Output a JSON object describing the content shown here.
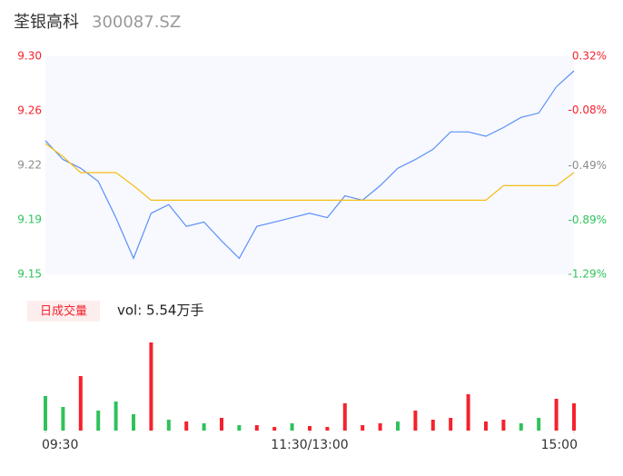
{
  "chart_data": [
    {
      "type": "line",
      "title": "荃银高科",
      "subtitle": "300087.SZ",
      "x": [
        0,
        8,
        16,
        24,
        32,
        40,
        48,
        56,
        64,
        72,
        80,
        88,
        96,
        104,
        112,
        120,
        128,
        136,
        144,
        152,
        160,
        168,
        176,
        184,
        192,
        200,
        208,
        216,
        224,
        232,
        240
      ],
      "xlim": [
        0,
        240
      ],
      "ylim": [
        9.15,
        9.3
      ],
      "yticks": [
        {
          "value": 9.3,
          "label": "9.30"
        },
        {
          "value": 9.2625,
          "label": "9.26"
        },
        {
          "value": 9.225,
          "label": "9.22"
        },
        {
          "value": 9.1875,
          "label": "9.19"
        },
        9.15
      ],
      "ytick_colors": [
        "#f5222d",
        "#f5222d",
        "#8c8c8c",
        "#2fc25b",
        "#2fc25b"
      ],
      "y2lim": [
        -1.29,
        0.32
      ],
      "y2ticks": [
        {
          "value": 0.32,
          "label": "0.32%"
        },
        {
          "value": -0.08,
          "label": "-0.08%"
        },
        {
          "value": -0.49,
          "label": "-0.49%"
        },
        {
          "value": -0.89,
          "label": "-0.89%"
        },
        {
          "value": -1.29,
          "label": "-1.29%"
        }
      ],
      "y2tick_colors": [
        "#f5222d",
        "#f5222d",
        "#8c8c8c",
        "#2fc25b",
        "#2fc25b"
      ],
      "series": [
        {
          "color": "#5b8ff9",
          "values": [
            9.242,
            9.229,
            9.223,
            9.214,
            9.189,
            9.161,
            9.192,
            9.198,
            9.183,
            9.186,
            9.173,
            9.161,
            9.183,
            9.186,
            9.189,
            9.192,
            9.189,
            9.204,
            9.201,
            9.211,
            9.223,
            9.229,
            9.236,
            9.248,
            9.248,
            9.245,
            9.251,
            9.258,
            9.261,
            9.279,
            9.29
          ]
        },
        {
          "color": "#f6bd16",
          "values": [
            9.24,
            9.231,
            9.22,
            9.22,
            9.22,
            9.211,
            9.201,
            9.201,
            9.201,
            9.201,
            9.201,
            9.201,
            9.201,
            9.201,
            9.201,
            9.201,
            9.201,
            9.201,
            9.201,
            9.201,
            9.201,
            9.201,
            9.201,
            9.201,
            9.201,
            9.201,
            9.211,
            9.211,
            9.211,
            9.211,
            9.22
          ]
        }
      ]
    },
    {
      "type": "bar",
      "label": "日成交量",
      "annotation": "vol: 5.54万手",
      "x": [
        0,
        8,
        16,
        24,
        32,
        40,
        48,
        56,
        64,
        72,
        80,
        88,
        96,
        104,
        112,
        120,
        128,
        136,
        144,
        152,
        160,
        168,
        176,
        184,
        192,
        200,
        208,
        216,
        224,
        232,
        240
      ],
      "xlim": [
        0,
        240
      ],
      "xticks": [
        {
          "value": 0,
          "label": "09:30"
        },
        {
          "value": 120,
          "label": "11:30/13:00"
        },
        {
          "value": 240,
          "label": "15:00"
        }
      ],
      "ylim": [
        0,
        100
      ],
      "values": [
        38,
        26,
        60,
        22,
        32,
        18,
        97,
        12,
        10,
        8,
        14,
        6,
        6,
        4,
        8,
        5,
        4,
        30,
        6,
        8,
        10,
        22,
        12,
        14,
        40,
        10,
        12,
        8,
        14,
        35,
        30
      ],
      "colors": [
        "#2fc25b",
        "#2fc25b",
        "#f5222d",
        "#2fc25b",
        "#2fc25b",
        "#2fc25b",
        "#f5222d",
        "#2fc25b",
        "#f5222d",
        "#2fc25b",
        "#f5222d",
        "#2fc25b",
        "#f5222d",
        "#f5222d",
        "#2fc25b",
        "#f5222d",
        "#f5222d",
        "#f5222d",
        "#f5222d",
        "#f5222d",
        "#2fc25b",
        "#f5222d",
        "#f5222d",
        "#f5222d",
        "#f5222d",
        "#f5222d",
        "#f5222d",
        "#2fc25b",
        "#2fc25b",
        "#f5222d",
        "#f5222d"
      ]
    }
  ]
}
